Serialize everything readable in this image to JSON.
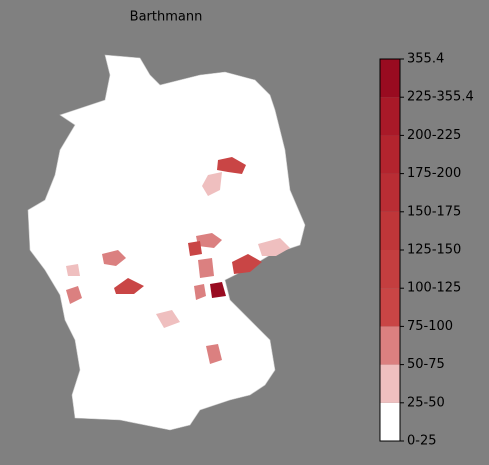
{
  "title": "Barthmann",
  "legend": {
    "labels": [
      "0-25",
      "25-50",
      "50-75",
      "75-100",
      "100-125",
      "125-150",
      "150-175",
      "175-200",
      "200-225",
      "225-355.4",
      "355.4"
    ],
    "colors": [
      "#ffffff",
      "#efbfbf",
      "#db8080",
      "#c94545",
      "#c43e3f",
      "#bf3639",
      "#b92d34",
      "#b3242e",
      "#a91928",
      "#990b20"
    ]
  }
}
